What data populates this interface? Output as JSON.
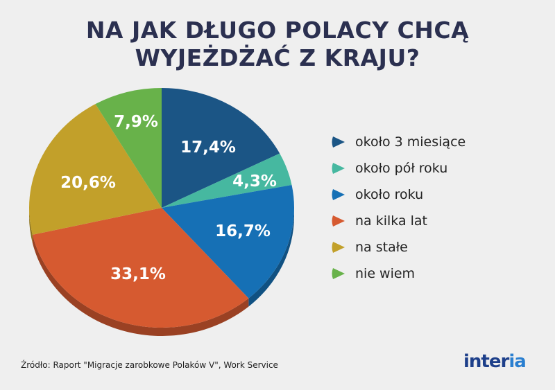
{
  "title": {
    "line1": "NA JAK DŁUGO POLACY CHCĄ",
    "line2": "WYJEŻDŻAĆ Z KRAJU?"
  },
  "chart_data": {
    "type": "pie",
    "title": "NA JAK DŁUGO POLACY CHCĄ WYJEŻDŻAĆ Z KRAJU?",
    "categories": [
      "około 3 miesiące",
      "około pół roku",
      "około roku",
      "na kilka lat",
      "na stałe",
      "nie wiem"
    ],
    "values": [
      17.4,
      4.3,
      16.7,
      33.1,
      20.6,
      7.9
    ],
    "labels": [
      "17,4%",
      "4,3%",
      "16,7%",
      "33,1%",
      "20,6%",
      "7,9%"
    ],
    "colors": [
      "#1b5585",
      "#46b8a0",
      "#1670b5",
      "#d65a30",
      "#c2a02a",
      "#68b24a"
    ],
    "legend_position": "right",
    "unit": "%"
  },
  "legend": {
    "items": [
      {
        "label": "około 3 miesiące",
        "color": "#1b5585"
      },
      {
        "label": "około pół roku",
        "color": "#46b8a0"
      },
      {
        "label": "około roku",
        "color": "#1670b5"
      },
      {
        "label": "na kilka lat",
        "color": "#d65a30"
      },
      {
        "label": "na stałe",
        "color": "#c2a02a"
      },
      {
        "label": "nie wiem",
        "color": "#68b24a"
      }
    ]
  },
  "source": "Źródło: Raport \"Migracje zarobkowe Polaków V\", Work Service",
  "logo": {
    "main": "inter",
    "accent": "ia"
  }
}
